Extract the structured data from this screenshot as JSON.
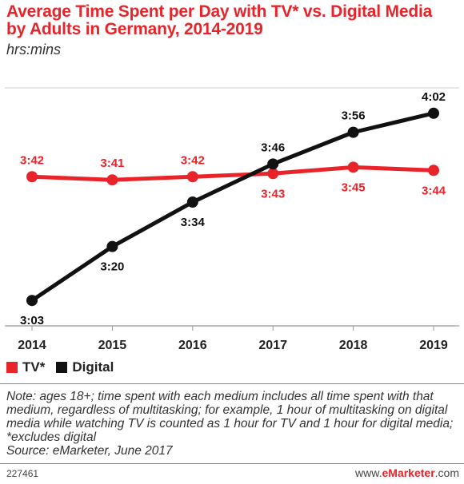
{
  "header": {
    "title": "Average Time Spent per Day with TV* vs. Digital Media by Adults in Germany, 2014-2019",
    "subtitle": "hrs:mins"
  },
  "legend": {
    "tv_label": "TV*",
    "digital_label": "Digital"
  },
  "colors": {
    "tv": "#e8242a",
    "digital": "#111111",
    "grid": "#cccccc"
  },
  "note": "Note: ages 18+; time spent with each medium includes all time spent with that medium, regardless of multitasking; for example, 1 hour of multitasking on digital media while watching TV is counted as 1 hour for TV and 1 hour for digital media; *excludes digital",
  "source": "Source: eMarketer, June 2017",
  "footer": {
    "id": "227461",
    "brand_prefix": "www.",
    "brand_name": "eMarketer",
    "brand_suffix": ".com"
  },
  "chart_data": {
    "type": "line",
    "categories": [
      "2014",
      "2015",
      "2016",
      "2017",
      "2018",
      "2019"
    ],
    "series": [
      {
        "name": "TV*",
        "values": [
          222,
          221,
          222,
          223,
          225,
          224
        ],
        "labels": [
          "3:42",
          "3:41",
          "3:42",
          "3:43",
          "3:45",
          "3:44"
        ]
      },
      {
        "name": "Digital",
        "values": [
          183,
          200,
          214,
          226,
          236,
          242
        ],
        "labels": [
          "3:03",
          "3:20",
          "3:34",
          "3:46",
          "3:56",
          "4:02"
        ]
      }
    ],
    "ylim": [
      175,
      250
    ],
    "grid": true
  }
}
